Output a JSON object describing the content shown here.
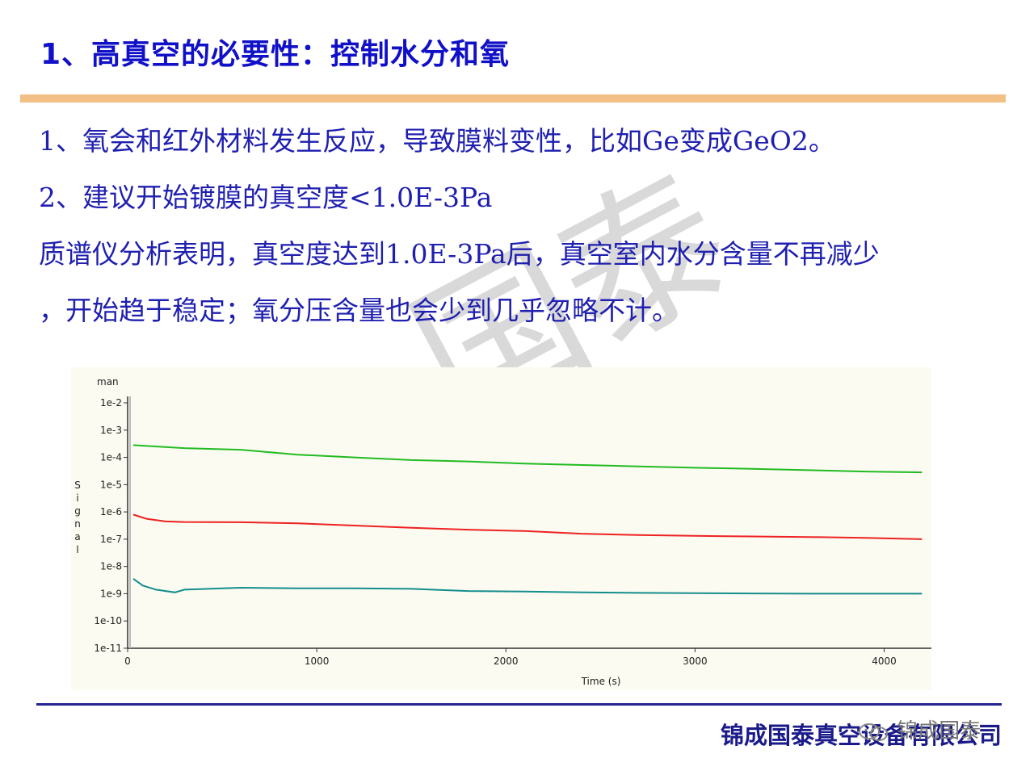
{
  "title": "1、高真空的必要性：控制水分和氧",
  "points": [
    "1、氧会和红外材料发生反应，导致膜料变性，比如Ge变成GeO2。",
    "2、建议开始镀膜的真空度<1.0E-3Pa",
    "质谱仪分析表明，真空度达到1.0E-3Pa后，真空室内水分含量不再减少",
    "，开始趋于稳定；氧分压含量也会少到几乎忽略不计。"
  ],
  "watermark": "国泰",
  "footer": {
    "company": "锦成国泰真空设备有限公司",
    "overlay_brand": "锦成国泰",
    "icon": "wechat-icon"
  },
  "chart_data": {
    "type": "line",
    "corner_label": "man",
    "xlabel": "Time (s)",
    "ylabel": "Signal",
    "y_scale": "log",
    "xlim": [
      0,
      4250
    ],
    "ylim_exp": [
      -11,
      -2
    ],
    "x_ticks": [
      0,
      1000,
      2000,
      3000,
      4000
    ],
    "y_tick_labels": [
      "1e-2",
      "1e-3",
      "1e-4",
      "1e-5",
      "1e-6",
      "1e-7",
      "1e-8",
      "1e-9",
      "1e-10",
      "1e-11"
    ],
    "series": [
      {
        "color": "#22bb22",
        "x": [
          30,
          200,
          300,
          600,
          900,
          1200,
          1500,
          1800,
          2100,
          2400,
          2700,
          3000,
          3300,
          3600,
          3900,
          4200
        ],
        "log10_y": [
          -3.55,
          -3.62,
          -3.66,
          -3.72,
          -3.9,
          -4.0,
          -4.1,
          -4.15,
          -4.23,
          -4.28,
          -4.33,
          -4.38,
          -4.42,
          -4.47,
          -4.52,
          -4.55
        ]
      },
      {
        "color": "#ee2222",
        "x": [
          30,
          100,
          200,
          300,
          600,
          900,
          1200,
          1500,
          1800,
          2100,
          2400,
          2700,
          3000,
          3300,
          3600,
          3900,
          4200
        ],
        "log10_y": [
          -6.1,
          -6.25,
          -6.35,
          -6.37,
          -6.38,
          -6.42,
          -6.5,
          -6.58,
          -6.65,
          -6.7,
          -6.8,
          -6.85,
          -6.88,
          -6.9,
          -6.92,
          -6.95,
          -7.0
        ]
      },
      {
        "color": "#158d8d",
        "x": [
          30,
          80,
          150,
          250,
          300,
          600,
          900,
          1200,
          1500,
          1800,
          2100,
          2400,
          2700,
          3000,
          3300,
          3600,
          3900,
          4200
        ],
        "log10_y": [
          -8.45,
          -8.7,
          -8.85,
          -8.95,
          -8.85,
          -8.78,
          -8.8,
          -8.8,
          -8.82,
          -8.9,
          -8.92,
          -8.95,
          -8.97,
          -8.98,
          -8.99,
          -9.0,
          -9.0,
          -9.0
        ]
      }
    ]
  }
}
